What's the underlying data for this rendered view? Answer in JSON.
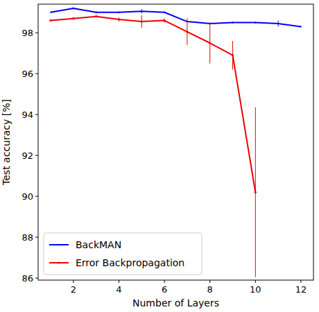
{
  "chart_data": {
    "type": "line",
    "x_label": "Number of Layers",
    "y_label": "Test accuracy [%]",
    "x": [
      1,
      2,
      3,
      4,
      5,
      6,
      7,
      8,
      9,
      10,
      11,
      12
    ],
    "series": [
      {
        "name": "BackMAN",
        "color": "#0000ff",
        "marker": "none",
        "values": [
          99.0,
          99.2,
          99.0,
          99.0,
          99.05,
          99.0,
          98.55,
          98.45,
          98.5,
          98.5,
          98.45,
          98.3
        ],
        "errors": [
          0.05,
          0.05,
          0.05,
          0.05,
          0.1,
          0.05,
          0.05,
          0.05,
          0.05,
          0.05,
          0.15,
          0.05
        ]
      },
      {
        "name": "Error Backpropagation",
        "color": "#ee0000",
        "marker": "dot",
        "values": [
          98.6,
          98.7,
          98.8,
          98.65,
          98.55,
          98.6,
          98.05,
          97.5,
          96.9,
          90.2,
          null,
          null
        ],
        "errors": [
          0.05,
          0.05,
          0.05,
          0.1,
          0.3,
          0.1,
          0.65,
          1.0,
          0.7,
          4.15,
          null,
          null
        ]
      }
    ],
    "xlim": [
      0.45,
      12.55
    ],
    "ylim": [
      85.9,
      99.4
    ],
    "xticks": [
      2,
      4,
      6,
      8,
      10,
      12
    ],
    "yticks": [
      86,
      88,
      90,
      92,
      94,
      96,
      98
    ],
    "legend": "lower left",
    "grid": false
  }
}
